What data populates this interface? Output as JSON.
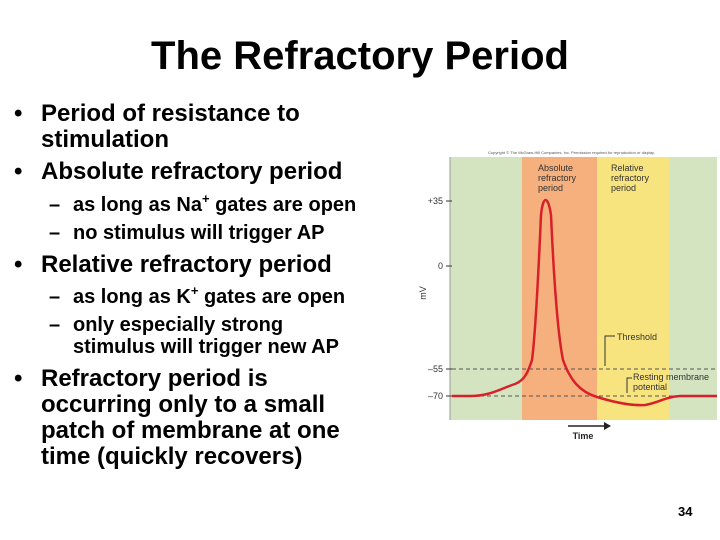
{
  "slide": {
    "title": "The Refractory Period",
    "bullets": [
      {
        "line1": "Period of resistance to",
        "line2": "stimulation"
      },
      {
        "text": "Absolute refractory period"
      },
      {
        "text": "Relative refractory period"
      },
      {
        "line1": "Refractory period is",
        "line2": "occurring only to a small",
        "line3": "patch of membrane at one",
        "line4": "time (quickly recovers)"
      }
    ],
    "sub": {
      "abs1_pre": "as long as Na",
      "abs1_sup": "+",
      "abs1_post": " gates are open",
      "abs2": "no stimulus will trigger AP",
      "rel1_pre": "as long as K",
      "rel1_sup": "+",
      "rel1_post": " gates are open",
      "rel2_line1": "only especially strong",
      "rel2_line2": "stimulus will trigger new AP"
    },
    "bullet_char": "•",
    "dash_char": "–",
    "page_number": "34"
  },
  "figure": {
    "copyright": "Copyright © The McGraw-Hill Companies, Inc. Permission required for reproduction or display.",
    "zone_absolute_l1": "Absolute",
    "zone_absolute_l2": "refractory",
    "zone_absolute_l3": "period",
    "zone_relative_l1": "Relative",
    "zone_relative_l2": "refractory",
    "zone_relative_l3": "period",
    "ylabel": "mV",
    "tick_35": "+35",
    "tick_0": "0",
    "tick_55": "–55",
    "tick_70": "–70",
    "threshold_label": "Threshold",
    "resting_l1": "Resting membrane",
    "resting_l2": "potential",
    "xlabel": "Time",
    "colors": {
      "background": "#d4e4c0",
      "absolute_zone": "#f6b07e",
      "relative_zone": "#f8e47e",
      "trace": "#d8202a"
    }
  }
}
